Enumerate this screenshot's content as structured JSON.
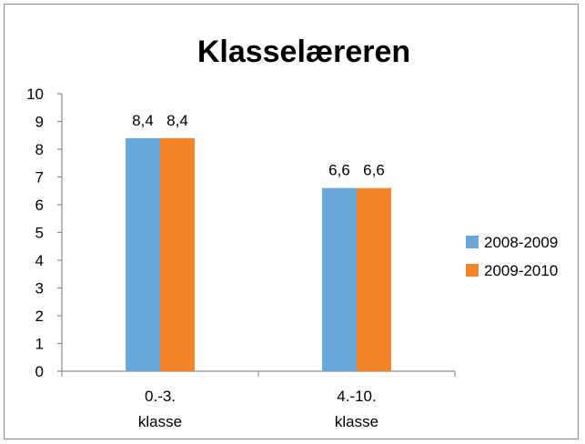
{
  "chart_data": {
    "type": "bar",
    "title": "Klasselæreren",
    "xlabel": "",
    "ylabel": "",
    "ylim": [
      0,
      10
    ],
    "yticks": [
      0,
      1,
      2,
      3,
      4,
      5,
      6,
      7,
      8,
      9,
      10
    ],
    "categories": [
      [
        "0.-3.",
        "klasse"
      ],
      [
        "4.-10.",
        "klasse"
      ]
    ],
    "series": [
      {
        "name": "2008-2009",
        "color": "#6aa8dc",
        "values": [
          8.4,
          6.6
        ],
        "labels": [
          "8,4",
          "6,6"
        ]
      },
      {
        "name": "2009-2010",
        "color": "#f2852a",
        "values": [
          8.4,
          6.6
        ],
        "labels": [
          "8,4",
          "6,6"
        ]
      }
    ],
    "grid": false,
    "legend_position": "right"
  }
}
